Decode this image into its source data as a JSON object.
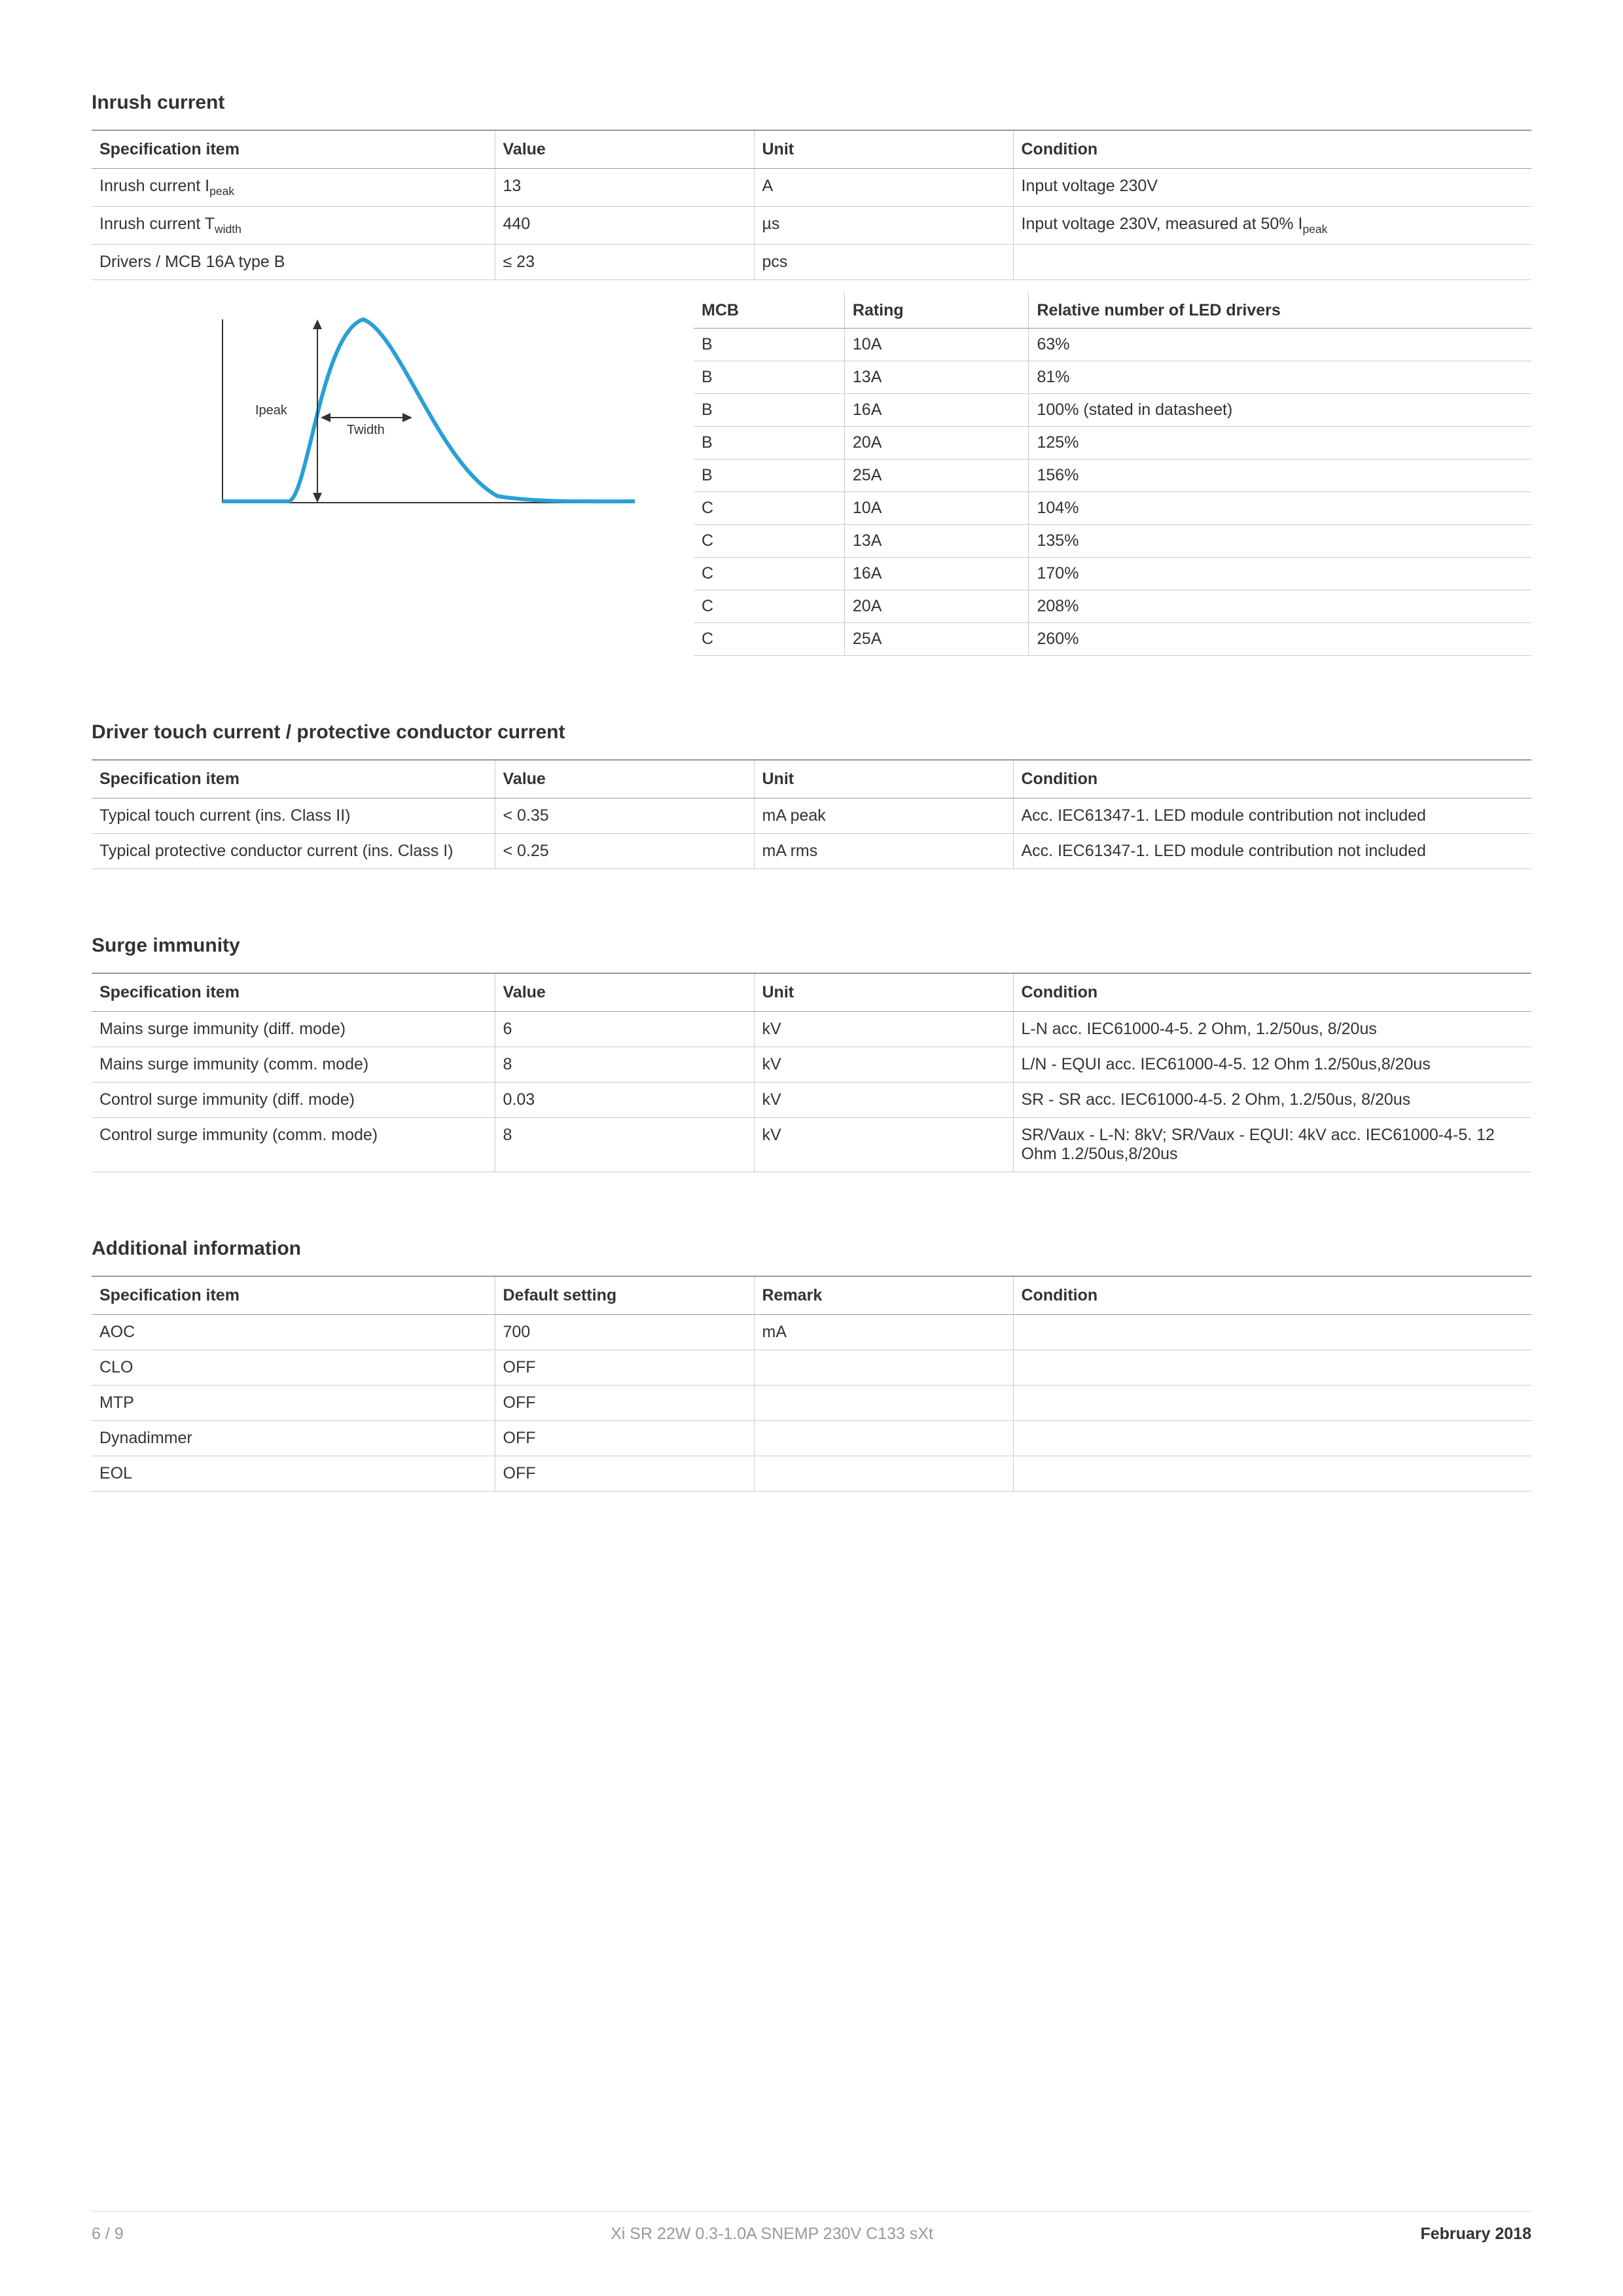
{
  "colors": {
    "curve": "#2a9fd6",
    "axis": "#333333",
    "arrow": "#333333"
  },
  "sections": {
    "inrush": {
      "title": "Inrush current",
      "columns": [
        "Specification item",
        "Value",
        "Unit",
        "Condition"
      ],
      "rows": [
        {
          "item_html": "Inrush current I<sub class='sub'>peak</sub>",
          "value": "13",
          "unit": "A",
          "cond": "Input voltage 230V"
        },
        {
          "item_html": "Inrush current T<sub class='sub'>width</sub>",
          "value": "440",
          "unit": "µs",
          "cond_html": "Input voltage 230V, measured at 50% I<sub class='sub'>peak</sub>"
        },
        {
          "item": "Drivers / MCB 16A type B",
          "value": "≤ 23",
          "unit": "pcs",
          "cond": ""
        }
      ],
      "graph": {
        "ipeak_label": "Ipeak",
        "twidth_label": "Twidth"
      },
      "mcb": {
        "columns": [
          "MCB",
          "Rating",
          "Relative number of LED drivers"
        ],
        "rows": [
          [
            "B",
            "10A",
            "63%"
          ],
          [
            "B",
            "13A",
            "81%"
          ],
          [
            "B",
            "16A",
            "100% (stated in datasheet)"
          ],
          [
            "B",
            "20A",
            "125%"
          ],
          [
            "B",
            "25A",
            "156%"
          ],
          [
            "C",
            "10A",
            "104%"
          ],
          [
            "C",
            "13A",
            "135%"
          ],
          [
            "C",
            "16A",
            "170%"
          ],
          [
            "C",
            "20A",
            "208%"
          ],
          [
            "C",
            "25A",
            "260%"
          ]
        ]
      }
    },
    "touch": {
      "title": "Driver touch current / protective conductor current",
      "columns": [
        "Specification item",
        "Value",
        "Unit",
        "Condition"
      ],
      "rows": [
        [
          "Typical touch current (ins. Class II)",
          "< 0.35",
          "mA peak",
          "Acc. IEC61347-1. LED module contribution not included"
        ],
        [
          "Typical protective conductor current (ins. Class I)",
          "< 0.25",
          "mA rms",
          "Acc. IEC61347-1. LED module contribution not included"
        ]
      ]
    },
    "surge": {
      "title": "Surge immunity",
      "columns": [
        "Specification item",
        "Value",
        "Unit",
        "Condition"
      ],
      "rows": [
        [
          "Mains surge immunity (diff. mode)",
          "6",
          "kV",
          "L-N acc. IEC61000-4-5. 2 Ohm, 1.2/50us, 8/20us"
        ],
        [
          "Mains surge immunity (comm. mode)",
          "8",
          "kV",
          "L/N - EQUI acc. IEC61000-4-5. 12 Ohm 1.2/50us,8/20us"
        ],
        [
          "Control surge immunity (diff. mode)",
          "0.03",
          "kV",
          "SR - SR acc. IEC61000-4-5. 2 Ohm, 1.2/50us, 8/20us"
        ],
        [
          "Control surge immunity (comm. mode)",
          "8",
          "kV",
          "SR/Vaux -  L-N: 8kV; SR/Vaux - EQUI: 4kV acc. IEC61000-4-5. 12 Ohm 1.2/50us,8/20us"
        ]
      ]
    },
    "additional": {
      "title": "Additional information",
      "columns": [
        "Specification item",
        "Default setting",
        "Remark",
        "Condition"
      ],
      "rows": [
        [
          "AOC",
          "700",
          "mA",
          ""
        ],
        [
          "CLO",
          "OFF",
          "",
          ""
        ],
        [
          "MTP",
          "OFF",
          "",
          ""
        ],
        [
          "Dynadimmer",
          "OFF",
          "",
          ""
        ],
        [
          "EOL",
          "OFF",
          "",
          ""
        ]
      ]
    }
  },
  "footer": {
    "page": "6 / 9",
    "product": "Xi SR 22W 0.3-1.0A SNEMP 230V C133 sXt",
    "date": "February 2018"
  }
}
